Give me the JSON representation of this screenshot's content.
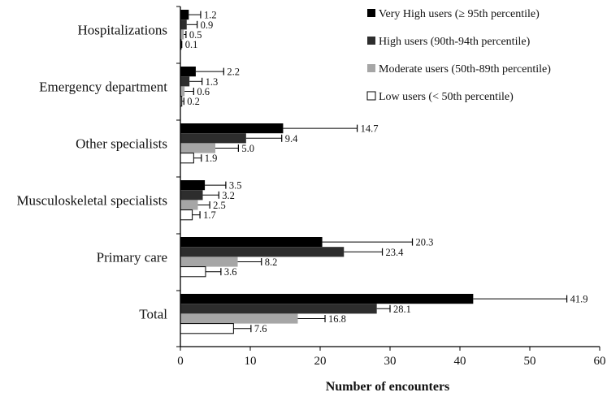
{
  "chart_data": {
    "type": "bar",
    "orientation": "horizontal",
    "categories": [
      "Hospitalizations",
      "Emergency department",
      "Other specialists",
      "Musculoskeletal specialists",
      "Primary care",
      "Total"
    ],
    "series": [
      {
        "name": "Very High users (≥ 95th percentile)",
        "color": "#000000",
        "values": [
          1.2,
          2.2,
          14.7,
          3.5,
          20.3,
          41.9
        ],
        "error_upper": [
          2.9,
          6.2,
          25.3,
          6.5,
          33.2,
          55.3
        ],
        "labels": [
          "1.2",
          "2.2",
          "14.7",
          "3.5",
          "20.3",
          "41.9"
        ]
      },
      {
        "name": "High users (90th-94th percentile)",
        "color": "#2d2d2d",
        "values": [
          0.9,
          1.3,
          9.4,
          3.2,
          23.4,
          28.1
        ],
        "error_upper": [
          2.4,
          3.1,
          14.5,
          5.5,
          28.9,
          30.0
        ],
        "labels": [
          "0.9",
          "1.3",
          "9.4",
          "3.2",
          "23.4",
          "28.1"
        ]
      },
      {
        "name": "Moderate users (50th-89th percentile)",
        "color": "#a6a6a6",
        "values": [
          0.5,
          0.6,
          5.0,
          2.5,
          8.2,
          16.8
        ],
        "error_upper": [
          0.8,
          1.9,
          8.3,
          4.2,
          11.6,
          20.7
        ],
        "labels": [
          "0.5",
          "0.6",
          "5.0",
          "2.5",
          "8.2",
          "16.8"
        ]
      },
      {
        "name": "Low users (< 50th percentile)",
        "color": "#ffffff",
        "values": [
          0.1,
          0.2,
          1.9,
          1.7,
          3.6,
          7.6
        ],
        "error_upper": [
          0.2,
          0.5,
          3.0,
          2.8,
          5.8,
          10.1
        ],
        "labels": [
          "0.1",
          "0.2",
          "1.9",
          "1.7",
          "3.6",
          "7.6"
        ]
      }
    ],
    "xlabel": "Number of encounters",
    "ylabel": "",
    "xlim": [
      0,
      60
    ],
    "xticks": [
      0,
      10,
      20,
      30,
      40,
      50,
      60
    ],
    "tick_labels": [
      "0",
      "10",
      "20",
      "30",
      "40",
      "50",
      "60"
    ],
    "grid": false,
    "legend_position": "top-right"
  }
}
